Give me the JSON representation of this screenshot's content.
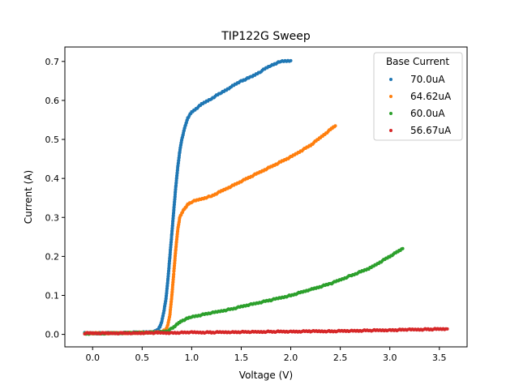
{
  "chart_data": {
    "type": "scatter",
    "title": "TIP122G Sweep",
    "xlabel": "Voltage (V)",
    "ylabel": "Current (A)",
    "xlim": [
      -0.28,
      3.78
    ],
    "ylim": [
      -0.032,
      0.737
    ],
    "xticks": [
      0.0,
      0.5,
      1.0,
      1.5,
      2.0,
      2.5,
      3.0,
      3.5
    ],
    "xtick_labels": [
      "0.0",
      "0.5",
      "1.0",
      "1.5",
      "2.0",
      "2.5",
      "3.0",
      "3.5"
    ],
    "yticks": [
      0.0,
      0.1,
      0.2,
      0.3,
      0.4,
      0.5,
      0.6,
      0.7
    ],
    "ytick_labels": [
      "0.0",
      "0.1",
      "0.2",
      "0.3",
      "0.4",
      "0.5",
      "0.6",
      "0.7"
    ],
    "grid": false,
    "legend": {
      "title": "Base Current",
      "placement": "top-right"
    },
    "series": [
      {
        "name": "70.0uA",
        "color": "#1f77b4",
        "points": [
          [
            -0.08,
            0.003
          ],
          [
            0.1,
            0.003
          ],
          [
            0.3,
            0.004
          ],
          [
            0.5,
            0.005
          ],
          [
            0.6,
            0.006
          ],
          [
            0.63,
            0.008
          ],
          [
            0.66,
            0.012
          ],
          [
            0.68,
            0.02
          ],
          [
            0.7,
            0.035
          ],
          [
            0.72,
            0.06
          ],
          [
            0.74,
            0.09
          ],
          [
            0.76,
            0.14
          ],
          [
            0.78,
            0.2
          ],
          [
            0.8,
            0.26
          ],
          [
            0.82,
            0.32
          ],
          [
            0.84,
            0.38
          ],
          [
            0.86,
            0.43
          ],
          [
            0.88,
            0.47
          ],
          [
            0.9,
            0.5
          ],
          [
            0.93,
            0.53
          ],
          [
            0.96,
            0.555
          ],
          [
            1.0,
            0.57
          ],
          [
            1.1,
            0.59
          ],
          [
            1.2,
            0.605
          ],
          [
            1.3,
            0.62
          ],
          [
            1.4,
            0.635
          ],
          [
            1.5,
            0.65
          ],
          [
            1.6,
            0.66
          ],
          [
            1.7,
            0.675
          ],
          [
            1.8,
            0.69
          ],
          [
            1.9,
            0.7
          ],
          [
            2.0,
            0.702
          ]
        ]
      },
      {
        "name": "64.62uA",
        "color": "#ff7f0e",
        "points": [
          [
            -0.08,
            0.003
          ],
          [
            0.2,
            0.003
          ],
          [
            0.4,
            0.004
          ],
          [
            0.6,
            0.005
          ],
          [
            0.7,
            0.007
          ],
          [
            0.74,
            0.012
          ],
          [
            0.76,
            0.025
          ],
          [
            0.78,
            0.05
          ],
          [
            0.8,
            0.1
          ],
          [
            0.82,
            0.16
          ],
          [
            0.84,
            0.22
          ],
          [
            0.86,
            0.27
          ],
          [
            0.88,
            0.3
          ],
          [
            0.92,
            0.32
          ],
          [
            0.96,
            0.333
          ],
          [
            1.0,
            0.34
          ],
          [
            1.2,
            0.355
          ],
          [
            1.4,
            0.38
          ],
          [
            1.6,
            0.405
          ],
          [
            1.8,
            0.43
          ],
          [
            2.0,
            0.455
          ],
          [
            2.2,
            0.485
          ],
          [
            2.3,
            0.505
          ],
          [
            2.4,
            0.525
          ],
          [
            2.45,
            0.535
          ]
        ]
      },
      {
        "name": "60.0uA",
        "color": "#2ca02c",
        "points": [
          [
            -0.08,
            0.002
          ],
          [
            0.2,
            0.003
          ],
          [
            0.4,
            0.004
          ],
          [
            0.6,
            0.005
          ],
          [
            0.7,
            0.006
          ],
          [
            0.75,
            0.008
          ],
          [
            0.8,
            0.015
          ],
          [
            0.85,
            0.025
          ],
          [
            0.9,
            0.035
          ],
          [
            1.0,
            0.045
          ],
          [
            1.2,
            0.055
          ],
          [
            1.4,
            0.065
          ],
          [
            1.6,
            0.077
          ],
          [
            1.8,
            0.088
          ],
          [
            2.0,
            0.1
          ],
          [
            2.2,
            0.115
          ],
          [
            2.4,
            0.13
          ],
          [
            2.6,
            0.15
          ],
          [
            2.8,
            0.17
          ],
          [
            3.0,
            0.2
          ],
          [
            3.13,
            0.22
          ]
        ]
      },
      {
        "name": "56.67uA",
        "color": "#d62728",
        "points": [
          [
            -0.08,
            0.003
          ],
          [
            0.2,
            0.003
          ],
          [
            0.4,
            0.003
          ],
          [
            0.6,
            0.004
          ],
          [
            0.8,
            0.004
          ],
          [
            1.0,
            0.005
          ],
          [
            1.2,
            0.005
          ],
          [
            1.4,
            0.006
          ],
          [
            1.6,
            0.006
          ],
          [
            1.8,
            0.007
          ],
          [
            2.0,
            0.007
          ],
          [
            2.2,
            0.008
          ],
          [
            2.4,
            0.008
          ],
          [
            2.6,
            0.009
          ],
          [
            2.8,
            0.01
          ],
          [
            3.0,
            0.011
          ],
          [
            3.2,
            0.012
          ],
          [
            3.4,
            0.013
          ],
          [
            3.58,
            0.014
          ]
        ]
      }
    ]
  }
}
